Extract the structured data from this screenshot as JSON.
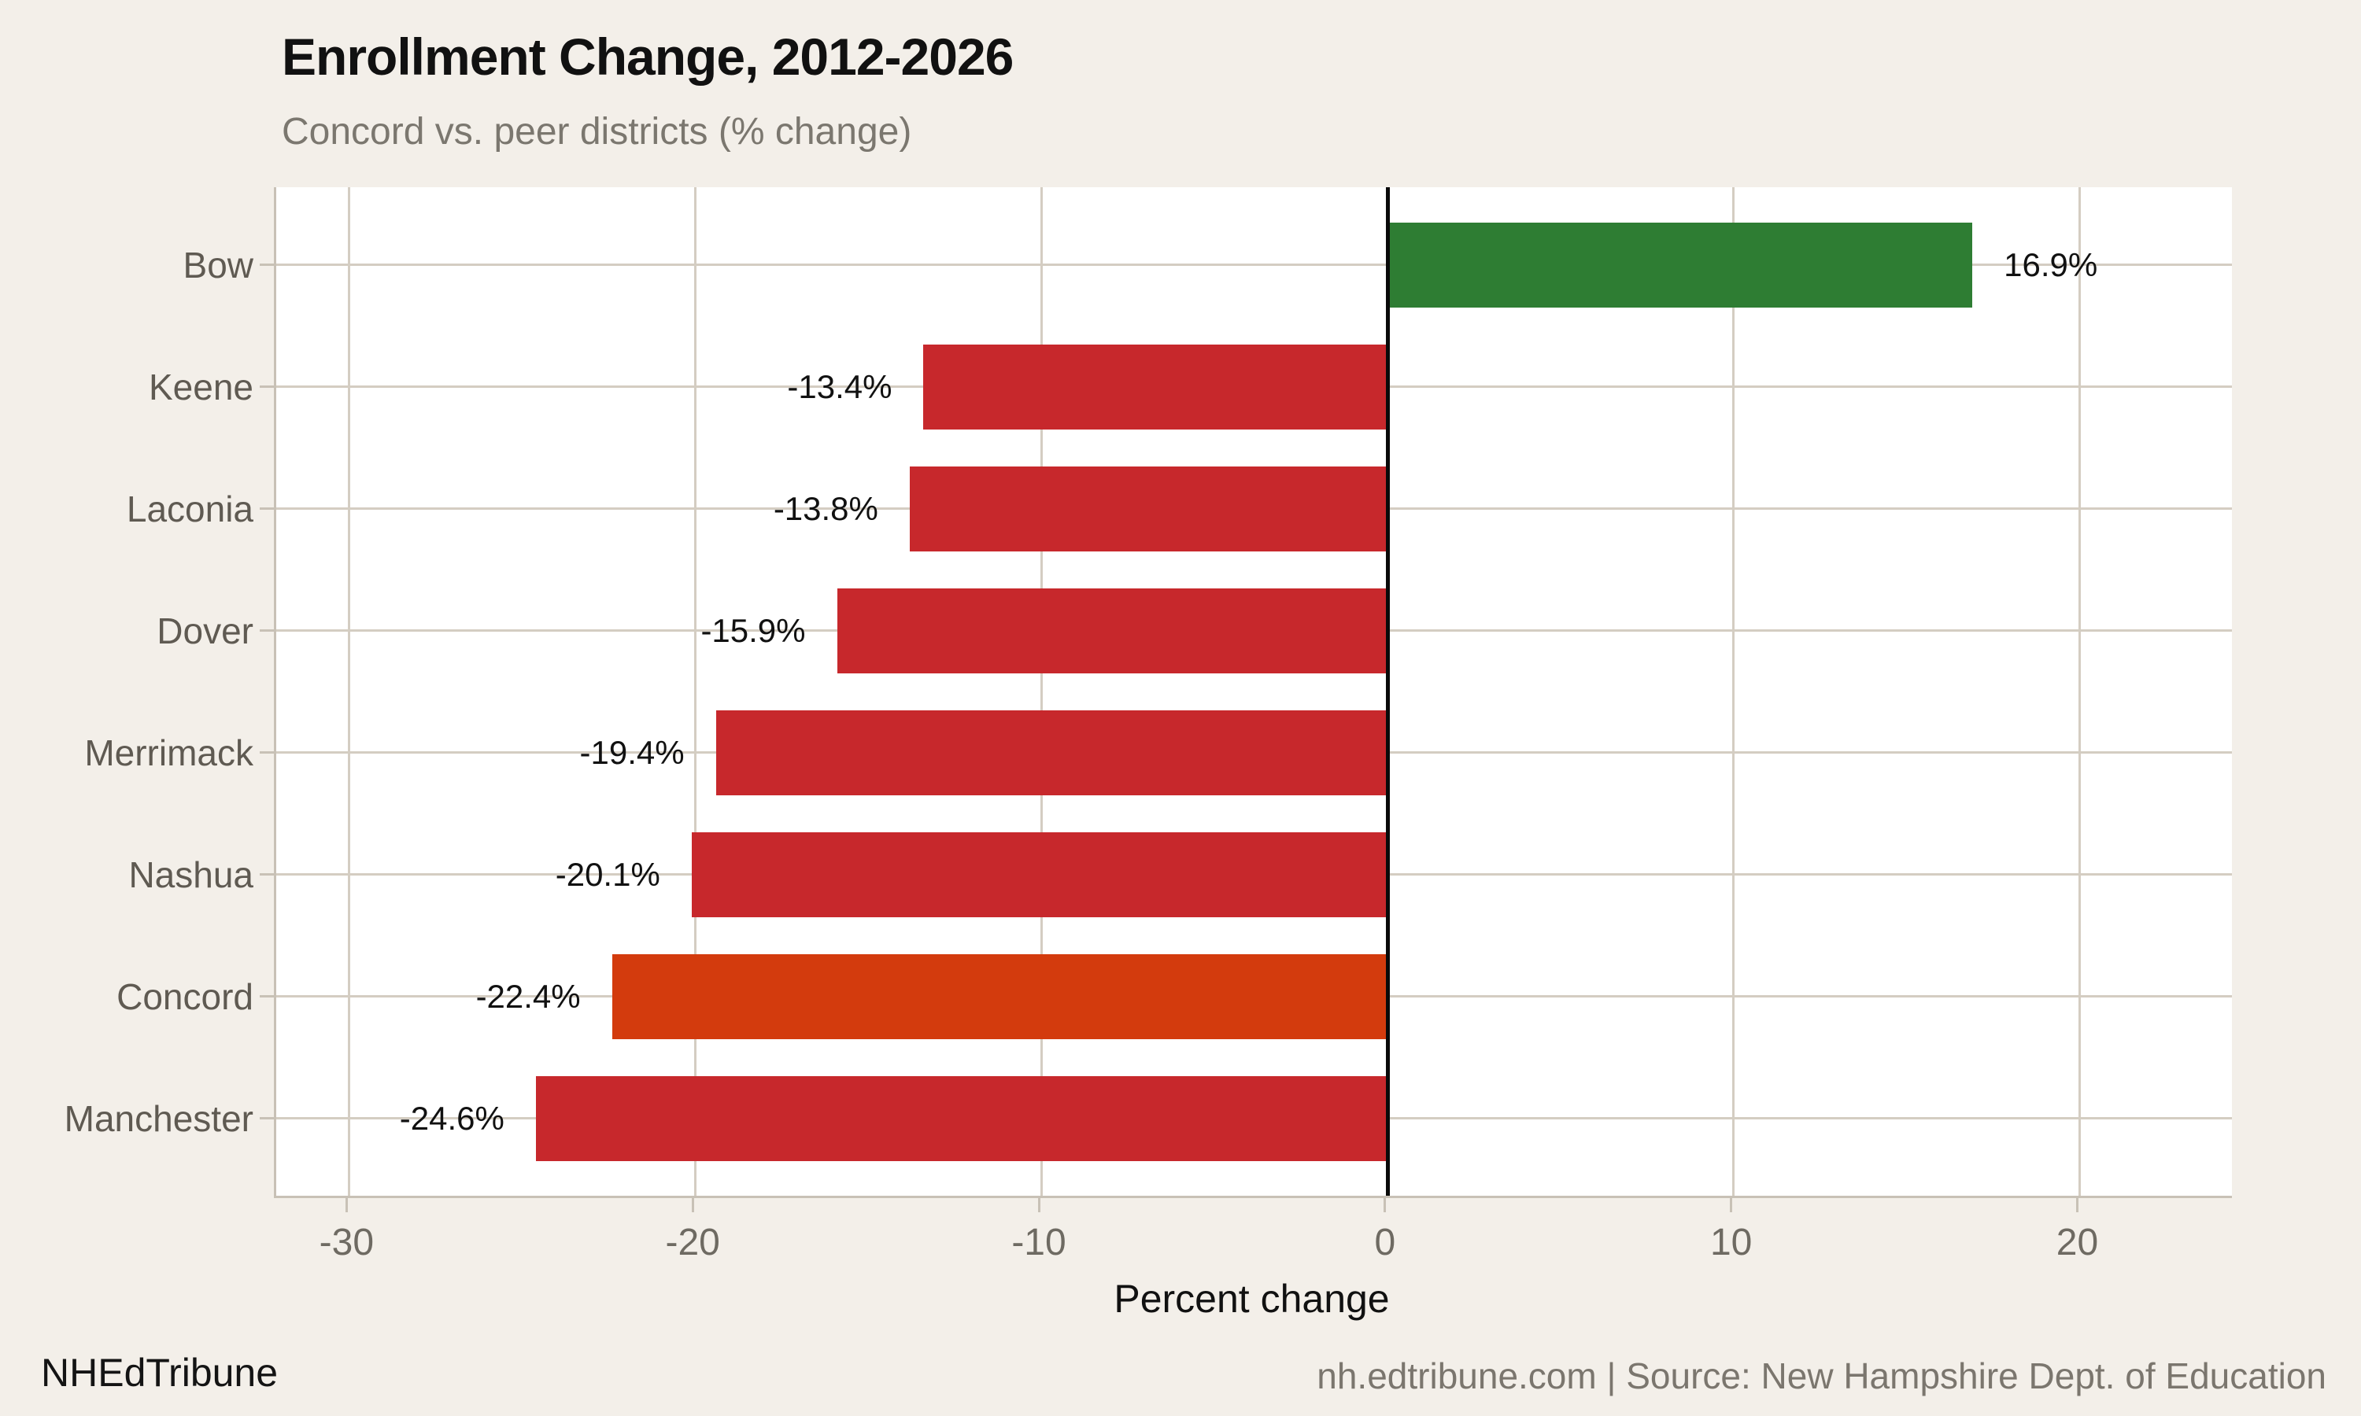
{
  "header": {
    "title": "Enrollment Change, 2012-2026",
    "subtitle": "Concord vs. peer districts (% change)"
  },
  "footer": {
    "brand": "NHEdTribune",
    "source": "nh.edtribune.com | Source: New Hampshire Dept. of Education"
  },
  "colors": {
    "background": "#f3efe9",
    "panel": "#ffffff",
    "gridline": "#d4cdc2",
    "axis_spine": "#c8c1b6",
    "zero_line": "#0a0a0a",
    "positive_bar": "#2e7d33",
    "negative_bar": "#c7282c",
    "highlight_bar": "#d33b0d"
  },
  "chart_data": {
    "type": "bar",
    "orientation": "horizontal",
    "title": "Enrollment Change, 2012-2026",
    "subtitle": "Concord vs. peer districts (% change)",
    "categories": [
      "Bow",
      "Keene",
      "Laconia",
      "Dover",
      "Merrimack",
      "Nashua",
      "Concord",
      "Manchester"
    ],
    "values": [
      16.9,
      -13.4,
      -13.8,
      -15.9,
      -19.4,
      -20.1,
      -22.4,
      -24.6
    ],
    "value_labels": [
      "16.9%",
      "-13.4%",
      "-13.8%",
      "-15.9%",
      "-19.4%",
      "-20.1%",
      "-22.4%",
      "-24.6%"
    ],
    "bar_colors": [
      "#2e7d33",
      "#c7282c",
      "#c7282c",
      "#c7282c",
      "#c7282c",
      "#c7282c",
      "#d33b0d",
      "#c7282c"
    ],
    "highlighted_category": "Concord",
    "xlabel": "Percent change",
    "ylabel": "",
    "x_ticks": [
      -30,
      -20,
      -10,
      0,
      10,
      20
    ],
    "xlim": [
      -32.1,
      24.4
    ],
    "grid": true,
    "legend": "none",
    "zero_line": true
  }
}
